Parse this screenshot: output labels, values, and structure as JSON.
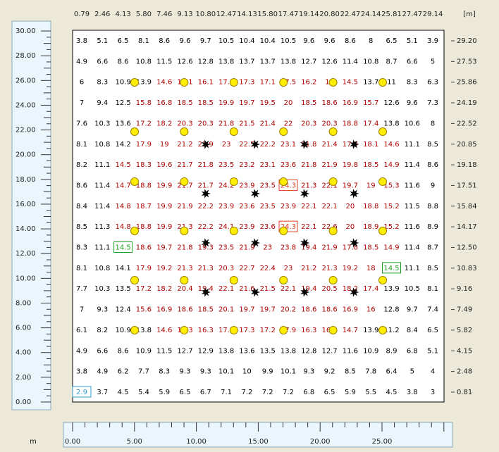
{
  "header": {
    "unit": "[m]",
    "x_labels": [
      "0.79",
      "2.46",
      "4.13",
      "5.80",
      "7.46",
      "9.13",
      "10.80",
      "12.47",
      "14.13",
      "15.80",
      "17.47",
      "19.14",
      "20.80",
      "22.47",
      "24.14",
      "25.81",
      "27.47",
      "29.14"
    ],
    "y_labels": [
      "29.20",
      "27.53",
      "25.86",
      "24.19",
      "22.52",
      "20.85",
      "19.18",
      "17.51",
      "15.84",
      "14.17",
      "12.50",
      "10.83",
      "9.16",
      "7.49",
      "5.82",
      "4.15",
      "2.48",
      "0.81"
    ]
  },
  "grid": {
    "low_color": "#000000",
    "high_color": "#b00000",
    "high_from": 14.5,
    "rows": [
      [
        3.8,
        5.1,
        6.5,
        8.1,
        8.6,
        9.6,
        9.7,
        10.5,
        10.4,
        10.4,
        10.5,
        9.6,
        9.6,
        8.6,
        8.0,
        6.5,
        5.1,
        3.9
      ],
      [
        4.9,
        6.6,
        8.6,
        10.8,
        11.5,
        12.6,
        12.8,
        13.8,
        13.7,
        13.7,
        13.8,
        12.7,
        12.6,
        11.4,
        10.8,
        8.7,
        6.6,
        5.0
      ],
      [
        6.0,
        8.3,
        10.9,
        13.9,
        14.6,
        16.1,
        16.1,
        17.4,
        17.3,
        17.1,
        17.5,
        16.2,
        16.0,
        14.5,
        13.7,
        11.0,
        8.3,
        6.3
      ],
      [
        7.0,
        9.4,
        12.5,
        15.8,
        16.8,
        18.5,
        18.5,
        19.9,
        19.7,
        19.5,
        20.0,
        18.5,
        18.6,
        16.9,
        15.7,
        12.6,
        9.6,
        7.3
      ],
      [
        7.6,
        10.3,
        13.6,
        17.2,
        18.2,
        20.3,
        20.3,
        21.8,
        21.5,
        21.4,
        22.0,
        20.3,
        20.3,
        18.8,
        17.4,
        13.8,
        10.6,
        8.0
      ],
      [
        8.1,
        10.8,
        14.2,
        17.9,
        19.0,
        21.2,
        22.9,
        23.0,
        22.5,
        22.2,
        23.1,
        21.8,
        21.4,
        17.9,
        18.1,
        14.6,
        11.1,
        8.5
      ],
      [
        8.2,
        11.1,
        14.5,
        18.3,
        19.6,
        21.7,
        21.8,
        23.5,
        23.2,
        23.1,
        23.6,
        21.8,
        21.9,
        19.8,
        18.5,
        14.9,
        11.4,
        8.6
      ],
      [
        8.6,
        11.4,
        14.7,
        18.8,
        19.9,
        21.7,
        21.7,
        24.2,
        23.9,
        23.5,
        24.3,
        21.3,
        22.1,
        19.7,
        19.0,
        15.3,
        11.6,
        9.0
      ],
      [
        8.4,
        11.4,
        14.8,
        18.7,
        19.9,
        21.9,
        22.2,
        23.9,
        23.6,
        23.5,
        23.9,
        22.1,
        22.1,
        20.0,
        18.8,
        15.2,
        11.5,
        8.8
      ],
      [
        8.5,
        11.3,
        14.8,
        18.8,
        19.9,
        21.3,
        22.2,
        24.1,
        23.9,
        23.6,
        24.3,
        22.1,
        22.6,
        20.0,
        18.9,
        15.2,
        11.6,
        8.9
      ],
      [
        8.3,
        11.1,
        14.5,
        18.6,
        19.7,
        21.8,
        19.3,
        23.5,
        21.9,
        23.0,
        23.8,
        19.4,
        21.9,
        17.8,
        18.5,
        14.9,
        11.4,
        8.7
      ],
      [
        8.1,
        10.8,
        14.1,
        17.9,
        19.2,
        21.3,
        21.3,
        20.3,
        22.7,
        22.4,
        23.0,
        21.2,
        21.3,
        19.2,
        18.0,
        14.5,
        11.1,
        8.5
      ],
      [
        7.7,
        10.3,
        13.5,
        17.2,
        18.2,
        20.4,
        19.4,
        22.1,
        21.6,
        21.5,
        22.1,
        19.4,
        20.5,
        18.2,
        17.4,
        13.9,
        10.5,
        8.1
      ],
      [
        7.0,
        9.3,
        12.4,
        15.6,
        16.9,
        18.6,
        18.5,
        20.1,
        19.7,
        19.7,
        20.2,
        18.6,
        18.6,
        16.9,
        16.0,
        12.8,
        9.7,
        7.4
      ],
      [
        6.1,
        8.2,
        10.9,
        13.8,
        14.6,
        16.3,
        16.3,
        17.4,
        17.3,
        17.2,
        17.9,
        16.3,
        16.1,
        14.7,
        13.9,
        11.2,
        8.4,
        6.5
      ],
      [
        4.9,
        6.6,
        8.6,
        10.9,
        11.5,
        12.7,
        12.9,
        13.8,
        13.6,
        13.5,
        13.8,
        12.8,
        12.7,
        11.6,
        10.9,
        8.9,
        6.8,
        5.1
      ],
      [
        3.8,
        4.9,
        6.2,
        7.7,
        8.3,
        9.3,
        9.3,
        10.1,
        10.0,
        9.9,
        10.1,
        9.3,
        9.2,
        8.5,
        7.8,
        6.4,
        5.0,
        4.0
      ],
      [
        2.9,
        3.7,
        4.5,
        5.4,
        5.9,
        6.5,
        6.7,
        7.1,
        7.2,
        7.2,
        7.2,
        6.8,
        6.5,
        5.9,
        5.5,
        4.5,
        3.8,
        3.0
      ]
    ]
  },
  "boxes": [
    {
      "row": 17,
      "col": 0,
      "color": "#3399cc"
    },
    {
      "row": 7,
      "col": 10,
      "color": "#e04020"
    },
    {
      "row": 9,
      "col": 10,
      "color": "#e04020"
    },
    {
      "row": 10,
      "col": 2,
      "color": "#20a020"
    },
    {
      "row": 11,
      "col": 15,
      "color": "#20a020"
    }
  ],
  "left_ruler": {
    "labels": [
      "0.00",
      "2.00",
      "4.00",
      "6.00",
      "8.00",
      "10.00",
      "12.00",
      "14.00",
      "16.00",
      "18.00",
      "20.00",
      "22.00",
      "24.00",
      "26.00",
      "28.00",
      "30.00"
    ]
  },
  "bottom_ruler": {
    "unit": "m",
    "labels": [
      "0.00",
      "5.00",
      "10.00",
      "15.00",
      "20.00",
      "25.00"
    ]
  }
}
